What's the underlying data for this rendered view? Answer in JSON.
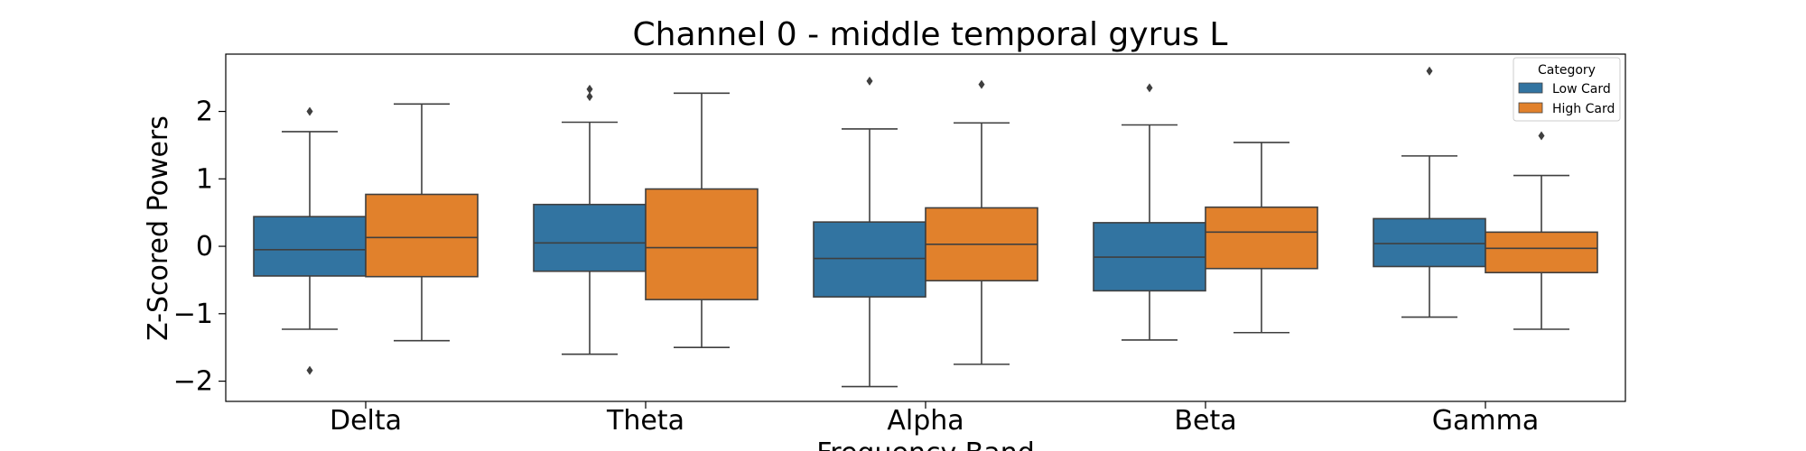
{
  "chart_data": {
    "type": "boxplot",
    "title": "Channel 0 - middle temporal gyrus L",
    "xlabel": "Frequency Band",
    "ylabel": "Z-Scored Powers",
    "ylim": [
      -2.3,
      2.85
    ],
    "yticks": [
      -2,
      -1,
      0,
      1,
      2
    ],
    "ytick_labels": [
      "−2",
      "−1",
      "0",
      "1",
      "2"
    ],
    "categories": [
      "Delta",
      "Theta",
      "Alpha",
      "Beta",
      "Gamma"
    ],
    "grid": false,
    "legend": {
      "title": "Category",
      "placement": "top-right"
    },
    "series": [
      {
        "name": "Low Card",
        "color": "#3274a1",
        "boxes": [
          {
            "whisker_low": -1.23,
            "q1": -0.44,
            "median": -0.05,
            "q3": 0.44,
            "whisker_high": 1.7,
            "outliers": [
              2.0,
              -1.84
            ]
          },
          {
            "whisker_low": -1.6,
            "q1": -0.37,
            "median": 0.05,
            "q3": 0.62,
            "whisker_high": 1.84,
            "outliers": [
              2.33,
              2.22
            ]
          },
          {
            "whisker_low": -2.08,
            "q1": -0.75,
            "median": -0.18,
            "q3": 0.36,
            "whisker_high": 1.74,
            "outliers": [
              2.45
            ]
          },
          {
            "whisker_low": -1.39,
            "q1": -0.66,
            "median": -0.16,
            "q3": 0.35,
            "whisker_high": 1.8,
            "outliers": [
              2.35
            ]
          },
          {
            "whisker_low": -1.05,
            "q1": -0.3,
            "median": 0.04,
            "q3": 0.41,
            "whisker_high": 1.34,
            "outliers": [
              2.6
            ]
          }
        ]
      },
      {
        "name": "High Card",
        "color": "#e1812c",
        "boxes": [
          {
            "whisker_low": -1.4,
            "q1": -0.45,
            "median": 0.13,
            "q3": 0.77,
            "whisker_high": 2.11,
            "outliers": []
          },
          {
            "whisker_low": -1.5,
            "q1": -0.79,
            "median": -0.02,
            "q3": 0.85,
            "whisker_high": 2.27,
            "outliers": []
          },
          {
            "whisker_low": -1.75,
            "q1": -0.51,
            "median": 0.03,
            "q3": 0.57,
            "whisker_high": 1.83,
            "outliers": [
              2.4
            ]
          },
          {
            "whisker_low": -1.28,
            "q1": -0.33,
            "median": 0.21,
            "q3": 0.58,
            "whisker_high": 1.54,
            "outliers": []
          },
          {
            "whisker_low": -1.23,
            "q1": -0.39,
            "median": -0.03,
            "q3": 0.21,
            "whisker_high": 1.05,
            "outliers": [
              1.64
            ]
          }
        ]
      }
    ]
  }
}
